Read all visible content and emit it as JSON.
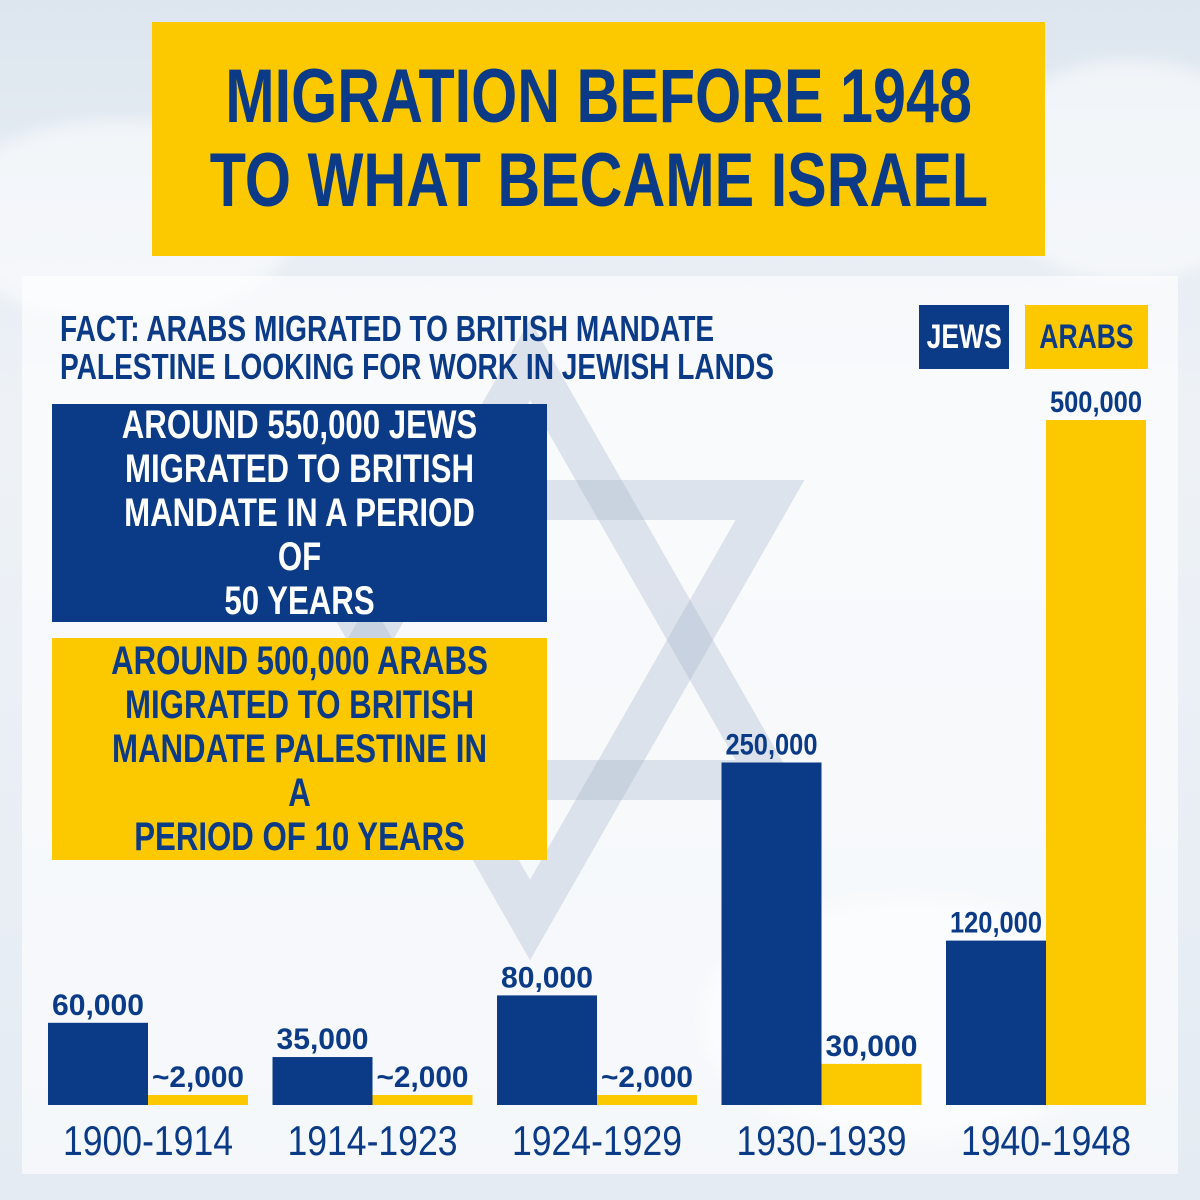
{
  "header": {
    "title_lines": [
      "MIGRATION BEFORE 1948",
      "TO WHAT BECAME ISRAEL"
    ]
  },
  "fact": {
    "lines": [
      "FACT: ARABS MIGRATED TO BRITISH MANDATE",
      "PALESTINE LOOKING FOR WORK IN JEWISH LANDS"
    ]
  },
  "legend": {
    "jews": "JEWS",
    "arabs": "ARABS"
  },
  "info": {
    "jews_text": "AROUND 550,000 JEWS\nMIGRATED TO BRITISH\nMANDATE IN A PERIOD OF\n50 YEARS",
    "arabs_text": "AROUND 500,000 ARABS\nMIGRATED TO BRITISH\nMANDATE PALESTINE IN A\nPERIOD OF 10 YEARS"
  },
  "colors": {
    "jews": "#0b3a86",
    "arabs": "#fcc900"
  },
  "chart_data": {
    "type": "bar",
    "categories": [
      "1900-1914",
      "1914-1923",
      "1924-1929",
      "1930-1939",
      "1940-1948"
    ],
    "series": [
      {
        "name": "JEWS",
        "values": [
          60000,
          35000,
          80000,
          250000,
          120000
        ],
        "labels": [
          "60,000",
          "35,000",
          "80,000",
          "250,000",
          "120,000"
        ]
      },
      {
        "name": "ARABS",
        "values": [
          2000,
          2000,
          2000,
          30000,
          500000
        ],
        "labels": [
          "~2,000",
          "~2,000",
          "~2,000",
          "30,000",
          "500,000"
        ]
      }
    ],
    "ylim": [
      0,
      500000
    ],
    "grid": false
  }
}
